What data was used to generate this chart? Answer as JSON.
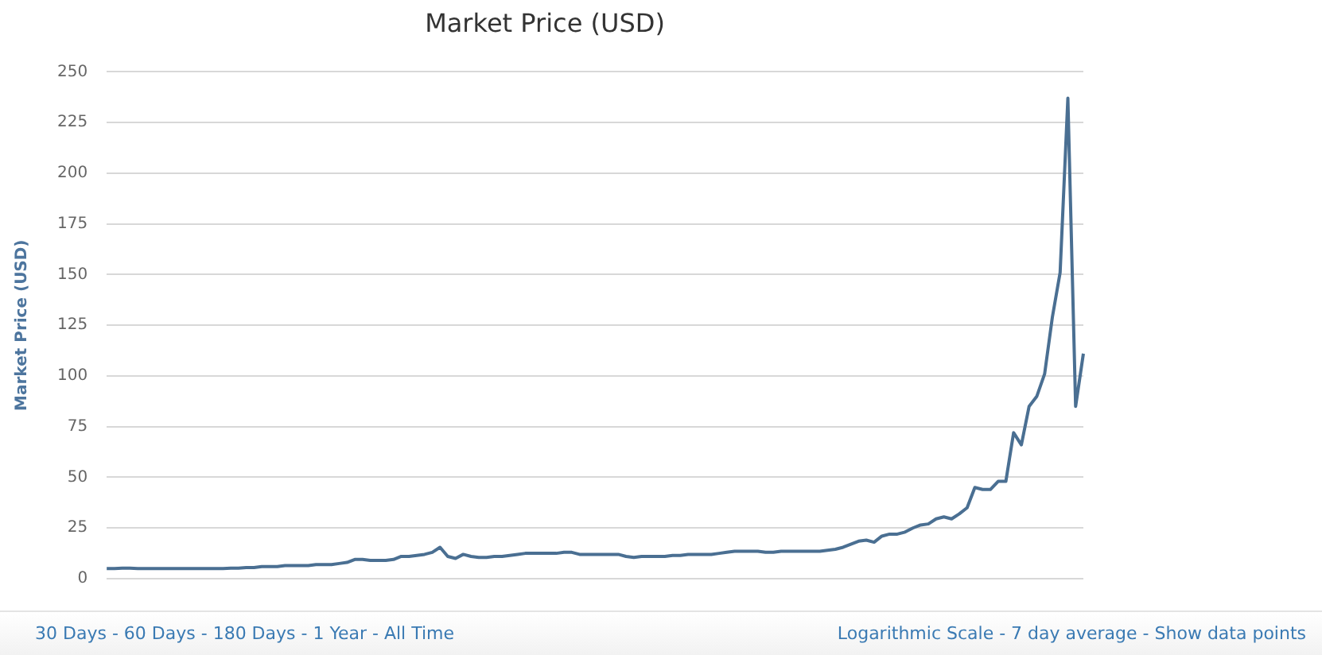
{
  "chart_data": {
    "type": "line",
    "title": "Market Price (USD)",
    "ylabel": "Market Price (USD)",
    "categories": [
      null,
      null,
      null,
      null,
      null,
      null,
      null,
      null,
      null,
      null,
      null,
      null,
      null,
      null,
      null,
      null,
      null,
      null,
      null,
      null,
      null,
      null,
      null,
      null,
      null,
      null,
      null,
      null,
      null,
      null,
      null,
      null,
      null,
      null,
      null,
      null,
      null,
      null,
      null,
      null,
      null,
      null,
      null,
      null,
      null,
      null,
      null,
      null,
      null,
      null,
      null,
      null,
      null,
      null,
      null,
      null,
      null,
      null,
      null,
      null,
      null,
      null,
      null,
      null,
      null,
      null,
      null,
      null,
      null,
      null,
      null,
      null,
      null,
      null,
      null,
      null,
      null,
      null,
      null,
      null,
      null,
      null,
      null,
      null,
      null,
      null,
      null,
      null,
      null,
      null,
      null,
      null,
      null,
      null,
      null,
      null,
      null,
      null,
      null,
      null,
      null,
      null,
      null,
      null,
      null,
      null,
      null,
      null,
      null,
      null,
      null,
      null,
      null,
      null,
      null,
      null,
      null,
      null,
      null,
      null,
      null,
      null,
      null,
      null,
      null,
      null,
      null
    ],
    "series": [
      {
        "color": "#4a6f92",
        "values": [
          5,
          5,
          5.2,
          5.2,
          5,
          5,
          5,
          5,
          5,
          5,
          5,
          5,
          5,
          5,
          5,
          5,
          5.2,
          5.2,
          5.5,
          5.5,
          6,
          6,
          6,
          6.5,
          6.5,
          6.5,
          6.5,
          7,
          7,
          7,
          7.5,
          8,
          9.5,
          9.5,
          9,
          9,
          9,
          9.5,
          11,
          11,
          11.5,
          12,
          13,
          15.5,
          11,
          10,
          12,
          11,
          10.5,
          10.5,
          11,
          11,
          11.5,
          12,
          12.5,
          12.5,
          12.5,
          12.5,
          12.5,
          13,
          13,
          12,
          12,
          12,
          12,
          12,
          12,
          11,
          10.5,
          11,
          11,
          11,
          11,
          11.5,
          11.5,
          12,
          12,
          12,
          12,
          12.5,
          13,
          13.5,
          13.5,
          13.5,
          13.5,
          13,
          13,
          13.5,
          13.5,
          13.5,
          13.5,
          13.5,
          13.5,
          14,
          14.5,
          15.5,
          17,
          18.5,
          19,
          18,
          21,
          22,
          22,
          23,
          25,
          26.5,
          27,
          29.5,
          30.5,
          29.5,
          32,
          35,
          45,
          44,
          44,
          48,
          48,
          72,
          66,
          85,
          90,
          101,
          129,
          151,
          237,
          85,
          111
        ]
      }
    ],
    "ylim": [
      0,
      250
    ],
    "yticks": [
      0,
      25,
      50,
      75,
      100,
      125,
      150,
      175,
      200,
      225,
      250
    ],
    "grid": "y",
    "legend": false,
    "tick_labels": "y",
    "marker": "none",
    "line_style": "solid",
    "annotations": [
      "30 Days - 60 Days - 180 Days - 1 Year - All Time",
      "Logarithmic Scale - 7 day average - Show data points"
    ]
  }
}
